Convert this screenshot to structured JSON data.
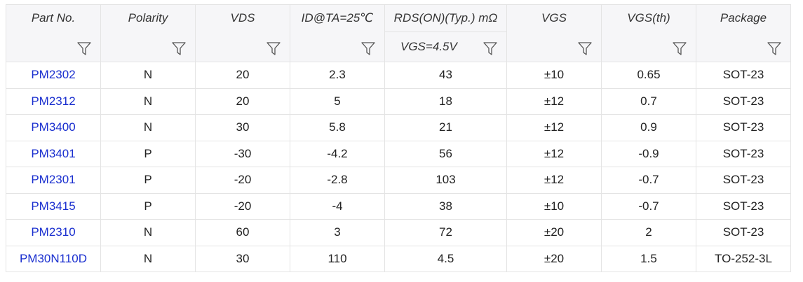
{
  "table": {
    "headers": [
      "Part No.",
      "Polarity",
      "VDS",
      "ID@TA=25℃",
      "RDS(ON)(Typ.) mΩ",
      "VGS",
      "VGS(th)",
      "Package"
    ],
    "subheader": "VGS=4.5V",
    "rows": [
      [
        "PM2302",
        "N",
        "20",
        "2.3",
        "43",
        "±10",
        "0.65",
        "SOT-23"
      ],
      [
        "PM2312",
        "N",
        "20",
        "5",
        "18",
        "±12",
        "0.7",
        "SOT-23"
      ],
      [
        "PM3400",
        "N",
        "30",
        "5.8",
        "21",
        "±12",
        "0.9",
        "SOT-23"
      ],
      [
        "PM3401",
        "P",
        "-30",
        "-4.2",
        "56",
        "±12",
        "-0.9",
        "SOT-23"
      ],
      [
        "PM2301",
        "P",
        "-20",
        "-2.8",
        "103",
        "±12",
        "-0.7",
        "SOT-23"
      ],
      [
        "PM3415",
        "P",
        "-20",
        "-4",
        "38",
        "±10",
        "-0.7",
        "SOT-23"
      ],
      [
        "PM2310",
        "N",
        "60",
        "3",
        "72",
        "±20",
        "2",
        "SOT-23"
      ],
      [
        "PM30N110D",
        "N",
        "30",
        "110",
        "4.5",
        "±20",
        "1.5",
        "TO-252-3L"
      ]
    ]
  }
}
